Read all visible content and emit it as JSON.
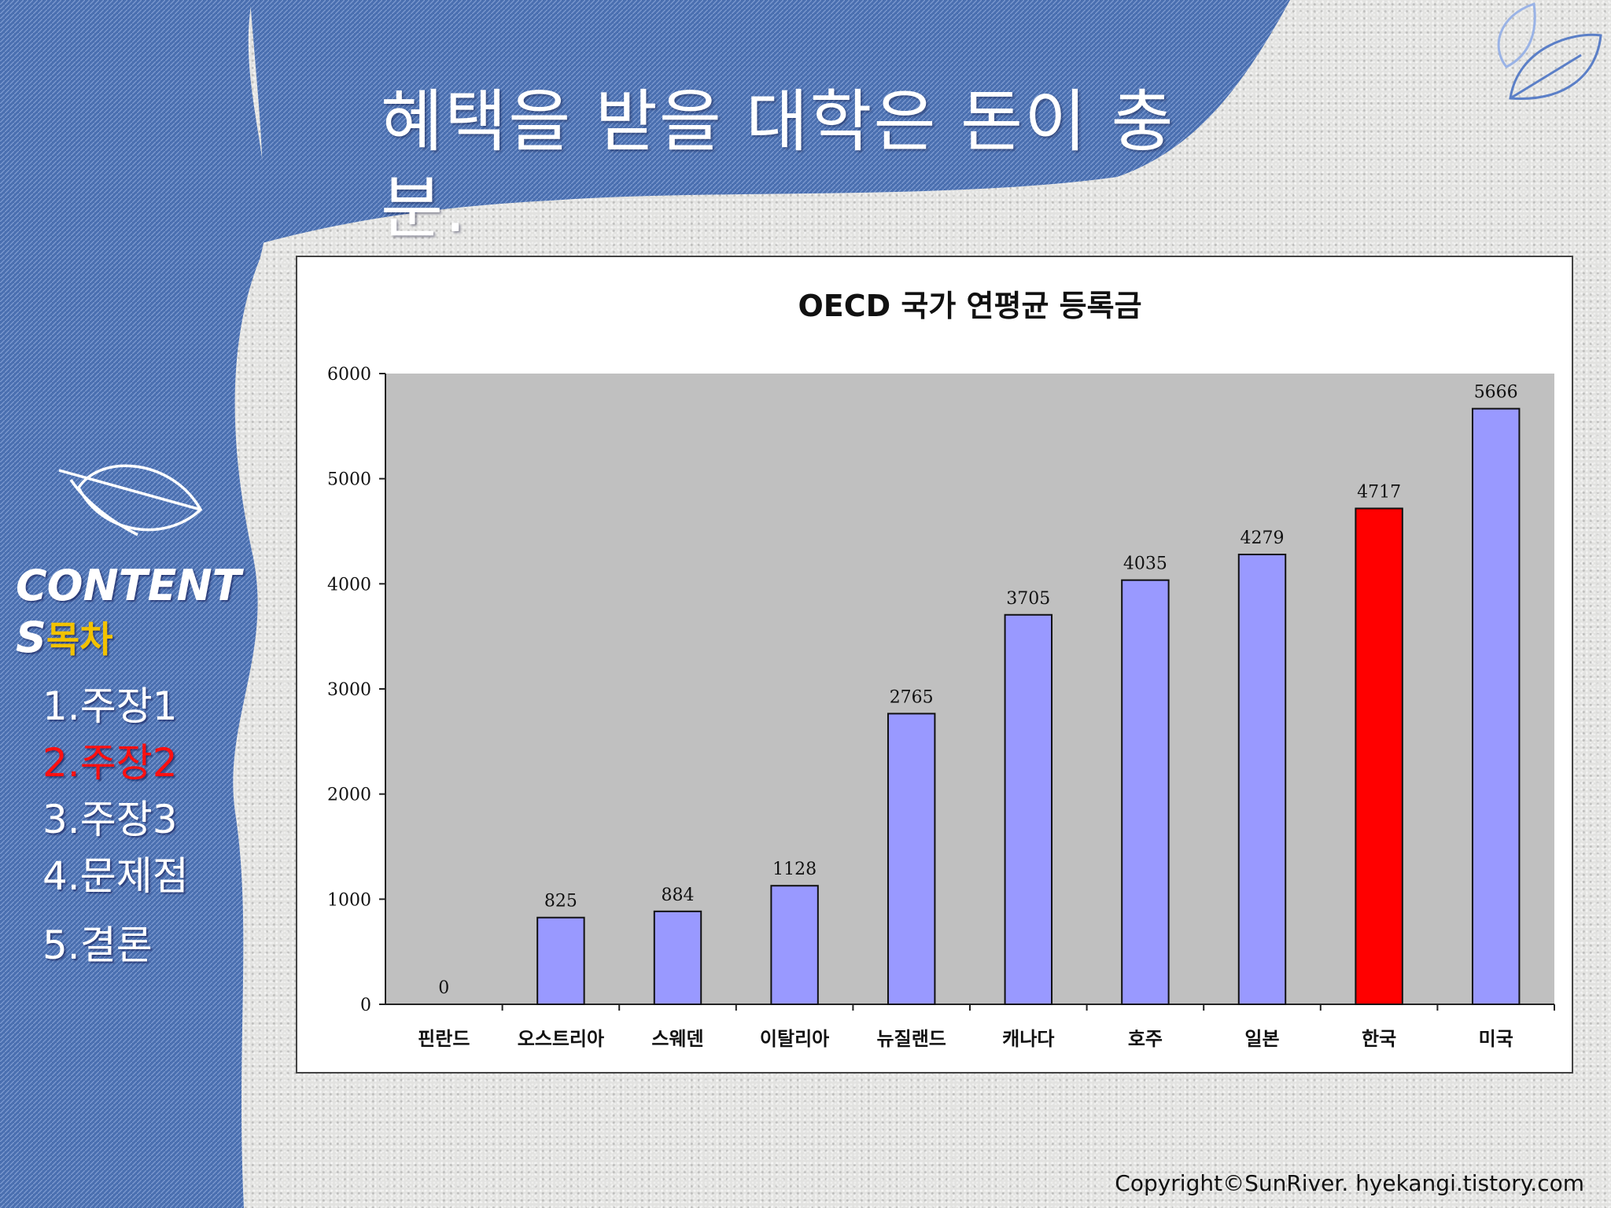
{
  "slide": {
    "title": "혜택을 받을 대학은 돈이 충분.",
    "contents_label": "CONTENTS",
    "contents_sub": "목차",
    "toc": [
      "1.주장1",
      "2.주장2",
      "3.주장3",
      "4.문제점",
      "5.결론"
    ],
    "active_index": 1,
    "copyright": "Copyright©SunRiver. hyekangi.tistory.com"
  },
  "colors": {
    "panel_blue": "#4a6fb0",
    "bar_default": "#9999ff",
    "bar_highlight": "#ff0000",
    "plot_bg": "#c0c0c0",
    "toc_active": "#ff1010"
  },
  "chart_data": {
    "type": "bar",
    "title": "OECD 국가 연평균 등록금",
    "categories": [
      "핀란드",
      "오스트리아",
      "스웨덴",
      "이탈리아",
      "뉴질랜드",
      "캐나다",
      "호주",
      "일본",
      "한국",
      "미국"
    ],
    "values": [
      0,
      825,
      884,
      1128,
      2765,
      3705,
      4035,
      4279,
      4717,
      5666
    ],
    "data_labels": [
      "0",
      "825",
      "884",
      "1128",
      "2765",
      "3705",
      "4035",
      "4279",
      "4717",
      "5666"
    ],
    "highlight_category": "한국",
    "ylim": [
      0,
      6000
    ],
    "yticks": [
      "0",
      "1000",
      "2000",
      "3000",
      "4000",
      "5000",
      "6000"
    ],
    "xlabel": "",
    "ylabel": "",
    "grid": false,
    "legend": false
  }
}
